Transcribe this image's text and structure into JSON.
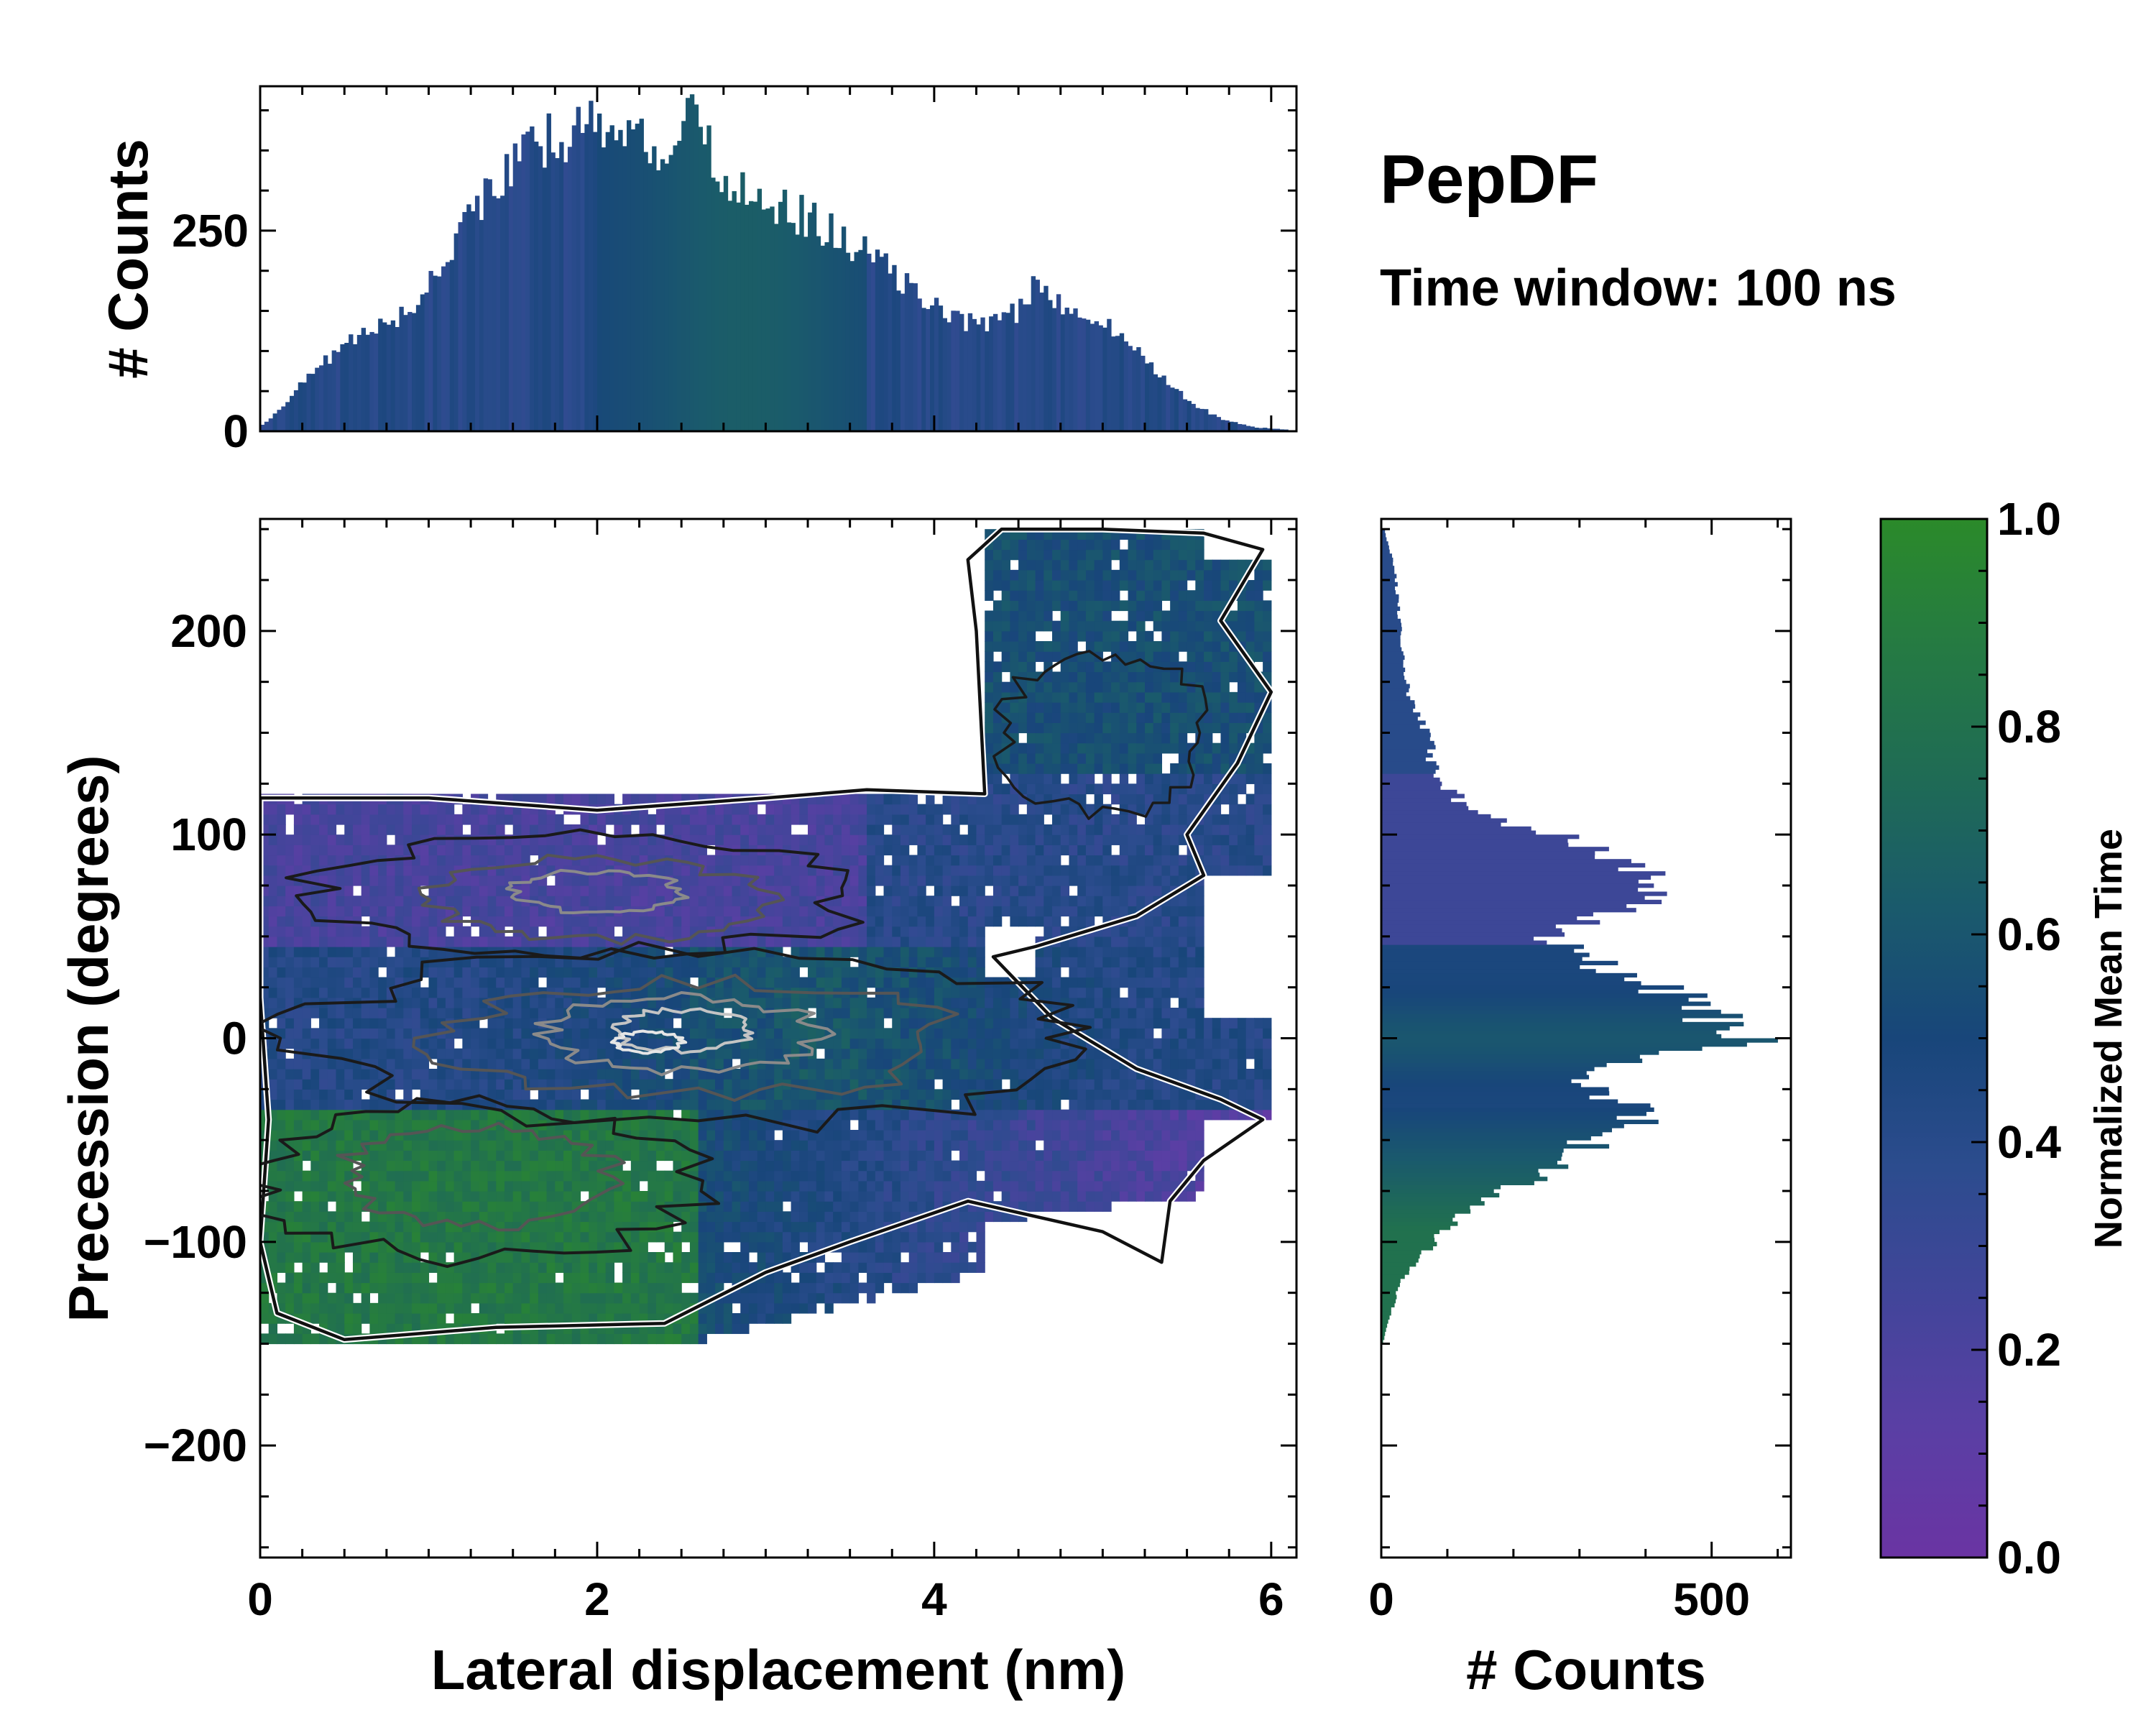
{
  "chart_data": {
    "type": "heatmap",
    "title": "PepDF",
    "subtitle": "Time window: 100 ns",
    "main": {
      "xlabel": "Lateral displacement (nm)",
      "ylabel": "Precession (degrees)",
      "xlim": [
        0,
        6.15
      ],
      "ylim": [
        -255,
        255
      ],
      "xticks": [
        0,
        2,
        4,
        6
      ],
      "yticks": [
        -200,
        -100,
        0,
        100,
        200
      ],
      "ytick_labels": [
        "−200",
        "−100",
        "0",
        "100",
        "200"
      ],
      "bin_width_x": 0.05,
      "bin_width_y": 5,
      "regions": [
        {
          "name": "upper band (purple-blue)",
          "x_range": [
            0,
            5.6
          ],
          "y_range": [
            10,
            120
          ],
          "normalized_mean_time": 0.25
        },
        {
          "name": "upper-right extension",
          "x_range": [
            4.3,
            6.0
          ],
          "y_range": [
            60,
            250
          ],
          "normalized_mean_time": 0.45
        },
        {
          "name": "central band (blue-green)",
          "x_range": [
            0,
            6.0
          ],
          "y_range": [
            -50,
            40
          ],
          "normalized_mean_time": 0.5
        },
        {
          "name": "lower band (green)",
          "x_range": [
            0,
            2.6
          ],
          "y_range": [
            -145,
            -40
          ],
          "normalized_mean_time": 0.85
        },
        {
          "name": "lower-right tail (purple)",
          "x_range": [
            2.6,
            5.6
          ],
          "y_range": [
            -90,
            -20
          ],
          "normalized_mean_time": 0.15
        }
      ],
      "density_peaks": [
        {
          "x": 2.6,
          "y": 0,
          "level": 1.0
        },
        {
          "x": 2.0,
          "y": 70,
          "level": 0.6
        },
        {
          "x": 1.2,
          "y": -65,
          "level": 0.55
        }
      ]
    },
    "top_histogram": {
      "ylabel": "# Counts",
      "ylim": [
        0,
        430
      ],
      "yticks": [
        0,
        250
      ],
      "bin_width": 0.05,
      "envelope_x": [
        0,
        0.1,
        0.3,
        0.5,
        0.7,
        0.9,
        1.1,
        1.3,
        1.5,
        1.7,
        1.9,
        2.1,
        2.3,
        2.5,
        2.6,
        2.7,
        2.9,
        3.1,
        3.3,
        3.5,
        3.7,
        3.9,
        4.1,
        4.3,
        4.5,
        4.6,
        4.7,
        4.9,
        5.1,
        5.3,
        5.5,
        5.7,
        5.9,
        6.1
      ],
      "envelope_counts": [
        5,
        25,
        70,
        110,
        130,
        150,
        220,
        290,
        330,
        360,
        380,
        390,
        350,
        370,
        395,
        320,
        300,
        280,
        260,
        230,
        210,
        170,
        140,
        135,
        150,
        180,
        165,
        150,
        120,
        80,
        40,
        15,
        5,
        2
      ]
    },
    "right_histogram": {
      "xlabel": "# Counts",
      "xlim": [
        0,
        620
      ],
      "xticks": [
        0,
        500
      ],
      "bin_width": 2,
      "envelope_y": [
        250,
        230,
        200,
        170,
        150,
        130,
        110,
        100,
        90,
        80,
        70,
        60,
        50,
        40,
        30,
        20,
        10,
        5,
        0,
        -10,
        -20,
        -30,
        -40,
        -50,
        -60,
        -70,
        -80,
        -90,
        -100,
        -110,
        -120,
        -140,
        -150
      ],
      "envelope_counts": [
        5,
        20,
        30,
        40,
        70,
        80,
        140,
        260,
        360,
        400,
        420,
        320,
        250,
        300,
        380,
        450,
        500,
        540,
        560,
        380,
        300,
        360,
        390,
        320,
        280,
        220,
        160,
        110,
        80,
        50,
        30,
        10,
        2
      ]
    },
    "colorbar": {
      "label": "Normalized Mean Time",
      "range": [
        0,
        1
      ],
      "ticks": [
        "0.0",
        "0.2",
        "0.4",
        "0.6",
        "0.8",
        "1.0"
      ],
      "colors": [
        "#6a34a3",
        "#5a3fa4",
        "#42459a",
        "#2c4c8e",
        "#18467a",
        "#1a5a6c",
        "#1f6b55",
        "#257a43",
        "#2b8a2a"
      ]
    }
  }
}
